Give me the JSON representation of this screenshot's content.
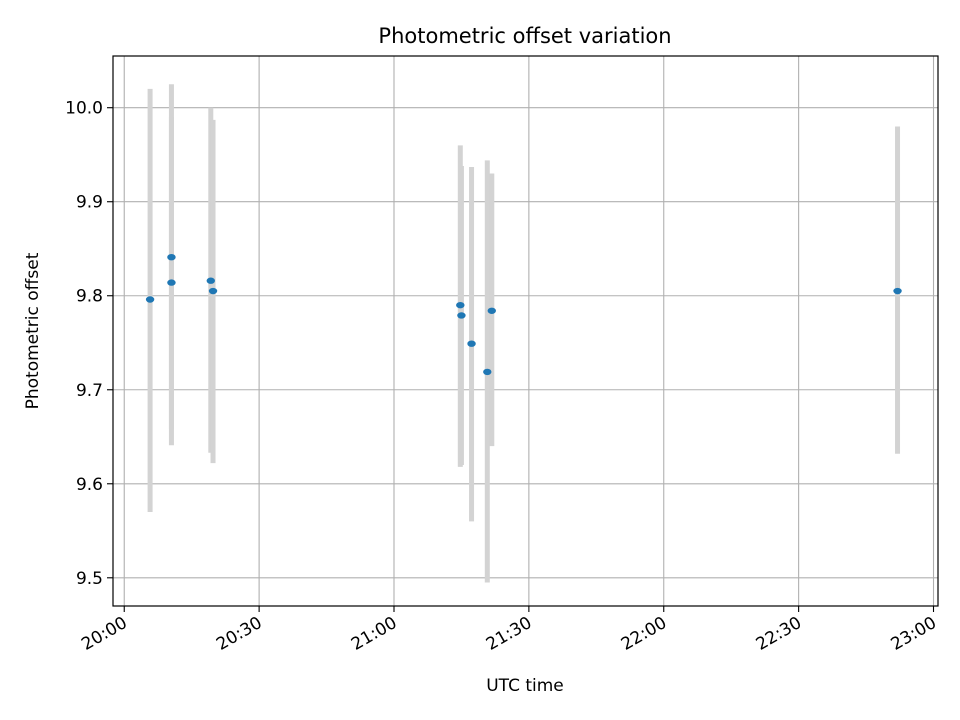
{
  "chart_data": {
    "type": "scatter",
    "title": "Photometric offset variation",
    "xlabel": "UTC time",
    "ylabel": "Photometric offset",
    "x_is_time": true,
    "xlim": [
      "19:57:30",
      "23:01:00"
    ],
    "ylim": [
      9.47,
      10.055
    ],
    "xticks": [
      "20:00",
      "20:30",
      "21:00",
      "21:30",
      "22:00",
      "22:30",
      "23:00"
    ],
    "yticks": [
      "9.5",
      "9.6",
      "9.7",
      "9.8",
      "9.9",
      "10.0"
    ],
    "grid": true,
    "point_color": "#1f77b4",
    "errorbar_color": "#d3d3d3",
    "series": [
      {
        "points": [
          {
            "x": "20:05:45",
            "y": 9.796,
            "err_low": 9.57,
            "err_high": 10.02
          },
          {
            "x": "20:10:30",
            "y": 9.841,
            "err_low": 9.658,
            "err_high": 10.025
          },
          {
            "x": "20:10:30",
            "y": 9.814,
            "err_low": 9.641,
            "err_high": 9.99
          },
          {
            "x": "20:19:15",
            "y": 9.816,
            "err_low": 9.633,
            "err_high": 10.0
          },
          {
            "x": "20:19:45",
            "y": 9.805,
            "err_low": 9.622,
            "err_high": 9.987
          },
          {
            "x": "21:14:45",
            "y": 9.79,
            "err_low": 9.618,
            "err_high": 9.96
          },
          {
            "x": "21:15:00",
            "y": 9.779,
            "err_low": 9.62,
            "err_high": 9.938
          },
          {
            "x": "21:17:15",
            "y": 9.749,
            "err_low": 9.56,
            "err_high": 9.937
          },
          {
            "x": "21:20:45",
            "y": 9.719,
            "err_low": 9.495,
            "err_high": 9.944
          },
          {
            "x": "21:21:45",
            "y": 9.784,
            "err_low": 9.64,
            "err_high": 9.93
          },
          {
            "x": "22:52:00",
            "y": 9.805,
            "err_low": 9.632,
            "err_high": 9.98
          }
        ]
      }
    ]
  }
}
